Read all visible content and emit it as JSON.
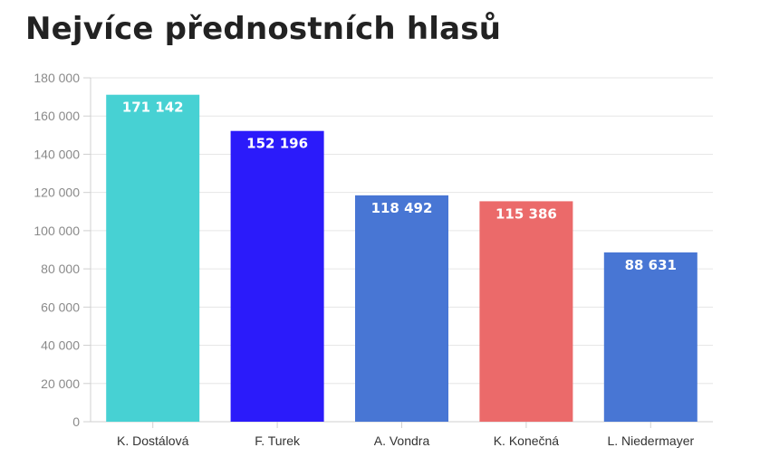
{
  "chart_data": {
    "type": "bar",
    "title": "Nejvíce přednostních hlasů",
    "categories": [
      "K. Dostálová",
      "F. Turek",
      "A. Vondra",
      "K. Konečná",
      "L. Niedermayer"
    ],
    "values": [
      171142,
      152196,
      118492,
      115386,
      88631
    ],
    "value_labels": [
      "171 142",
      "152 196",
      "118 492",
      "115 386",
      "88 631"
    ],
    "colors": [
      "#47d1d3",
      "#2b1bfa",
      "#4876d4",
      "#eb6a6a",
      "#4876d4"
    ],
    "ylim": [
      0,
      180000
    ],
    "yticks": [
      0,
      20000,
      40000,
      60000,
      80000,
      100000,
      120000,
      140000,
      160000,
      180000
    ],
    "ytick_labels": [
      "0",
      "20 000",
      "40 000",
      "60 000",
      "80 000",
      "100 000",
      "120 000",
      "140 000",
      "160 000",
      "180 000"
    ],
    "xlabel": "",
    "ylabel": "",
    "grid": true,
    "legend": "none"
  }
}
